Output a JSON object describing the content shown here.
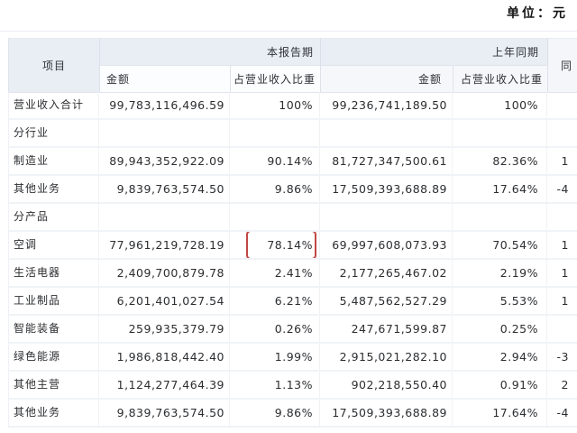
{
  "unit_label": "单位：元",
  "header": {
    "item": "项目",
    "current_period": "本报告期",
    "prior_period": "上年同期",
    "yoy_truncated": "同",
    "amount_current": "金额",
    "ratio_current": "占营业收入比重",
    "amount_prior": "金额",
    "ratio_prior": "占营业收入比重"
  },
  "highlight_color": "#c14745",
  "rows": [
    {
      "label": "营业收入合计",
      "amt_cur": "99,783,116,496.59",
      "ratio_cur": "100%",
      "amt_prior": "99,236,741,189.50",
      "ratio_prior": "100%",
      "yoy": "",
      "type": "data",
      "highlight": false
    },
    {
      "label": "分行业",
      "amt_cur": "",
      "ratio_cur": "",
      "amt_prior": "",
      "ratio_prior": "",
      "yoy": "",
      "type": "section",
      "highlight": false
    },
    {
      "label": "制造业",
      "amt_cur": "89,943,352,922.09",
      "ratio_cur": "90.14%",
      "amt_prior": "81,727,347,500.61",
      "ratio_prior": "82.36%",
      "yoy": "1",
      "type": "data",
      "highlight": false
    },
    {
      "label": "其他业务",
      "amt_cur": "9,839,763,574.50",
      "ratio_cur": "9.86%",
      "amt_prior": "17,509,393,688.89",
      "ratio_prior": "17.64%",
      "yoy": "-4",
      "type": "data",
      "highlight": false
    },
    {
      "label": "分产品",
      "amt_cur": "",
      "ratio_cur": "",
      "amt_prior": "",
      "ratio_prior": "",
      "yoy": "",
      "type": "section",
      "highlight": false
    },
    {
      "label": "空调",
      "amt_cur": "77,961,219,728.19",
      "ratio_cur": "78.14%",
      "amt_prior": "69,997,608,073.93",
      "ratio_prior": "70.54%",
      "yoy": "1",
      "type": "data",
      "highlight": true
    },
    {
      "label": "生活电器",
      "amt_cur": "2,409,700,879.78",
      "ratio_cur": "2.41%",
      "amt_prior": "2,177,265,467.02",
      "ratio_prior": "2.19%",
      "yoy": "1",
      "type": "data",
      "highlight": false
    },
    {
      "label": "工业制品",
      "amt_cur": "6,201,401,027.54",
      "ratio_cur": "6.21%",
      "amt_prior": "5,487,562,527.29",
      "ratio_prior": "5.53%",
      "yoy": "1",
      "type": "data",
      "highlight": false
    },
    {
      "label": "智能装备",
      "amt_cur": "259,935,379.79",
      "ratio_cur": "0.26%",
      "amt_prior": "247,671,599.87",
      "ratio_prior": "0.25%",
      "yoy": "",
      "type": "data",
      "highlight": false
    },
    {
      "label": "绿色能源",
      "amt_cur": "1,986,818,442.40",
      "ratio_cur": "1.99%",
      "amt_prior": "2,915,021,282.10",
      "ratio_prior": "2.94%",
      "yoy": "-3",
      "type": "data",
      "highlight": false
    },
    {
      "label": "其他主营",
      "amt_cur": "1,124,277,464.39",
      "ratio_cur": "1.13%",
      "amt_prior": "902,218,550.40",
      "ratio_prior": "0.91%",
      "yoy": "2",
      "type": "data",
      "highlight": false
    },
    {
      "label": "其他业务",
      "amt_cur": "9,839,763,574.50",
      "ratio_cur": "9.86%",
      "amt_prior": "17,509,393,688.89",
      "ratio_prior": "17.64%",
      "yoy": "-4",
      "type": "data",
      "highlight": false
    }
  ]
}
